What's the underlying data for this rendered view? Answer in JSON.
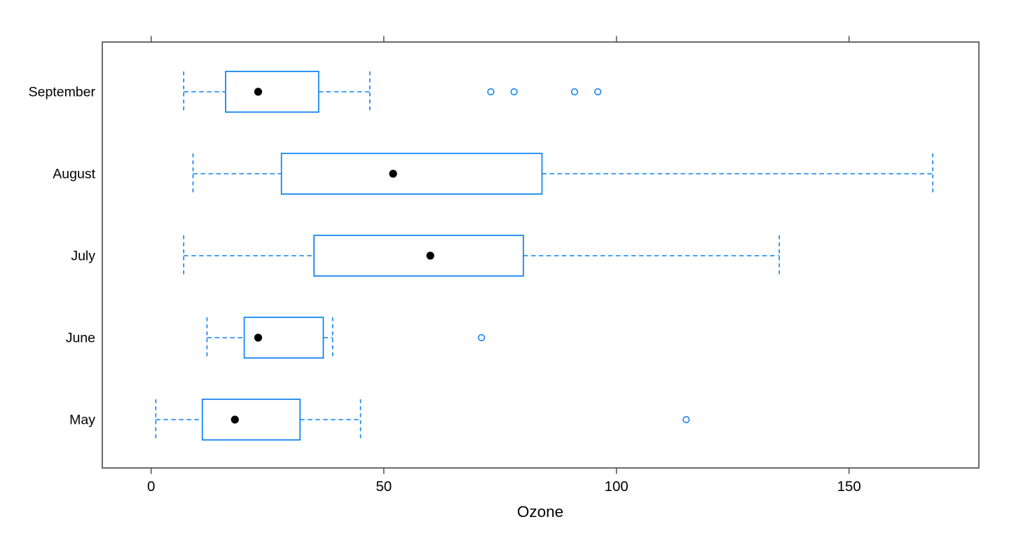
{
  "figure": {
    "background": "#ffffff"
  },
  "chart_data": {
    "type": "boxplot",
    "orientation": "horizontal",
    "title": "",
    "xlabel": "Ozone",
    "ylabel": "",
    "categories_bottom_to_top": [
      "May",
      "June",
      "July",
      "August",
      "September"
    ],
    "x_ticks": [
      0,
      50,
      100,
      150
    ],
    "xlim": [
      -10.5,
      177.9
    ],
    "grid": false,
    "legend": false,
    "series": [
      {
        "category": "September",
        "whisker_low": 7,
        "q1": 16,
        "median": 23,
        "q3": 36,
        "whisker_high": 47,
        "outliers": [
          73,
          78,
          91,
          96
        ]
      },
      {
        "category": "August",
        "whisker_low": 9,
        "q1": 28,
        "median": 52,
        "q3": 84,
        "whisker_high": 168,
        "outliers": []
      },
      {
        "category": "July",
        "whisker_low": 7,
        "q1": 35,
        "median": 60,
        "q3": 80,
        "whisker_high": 135,
        "outliers": []
      },
      {
        "category": "June",
        "whisker_low": 12,
        "q1": 20,
        "median": 23,
        "q3": 37,
        "whisker_high": 39,
        "outliers": [
          71
        ]
      },
      {
        "category": "May",
        "whisker_low": 1,
        "q1": 11,
        "median": 18,
        "q3": 32,
        "whisker_high": 45,
        "outliers": [
          115
        ]
      }
    ],
    "style": {
      "box_color": "#0b80f0",
      "whisker_color": "#0b80f0",
      "outlier_color": "#1e88f2",
      "median_dot_color": "#000000",
      "frame_color": "#454545",
      "tick_color": "#555555",
      "text_color": "#000000",
      "background": "#ffffff"
    }
  }
}
